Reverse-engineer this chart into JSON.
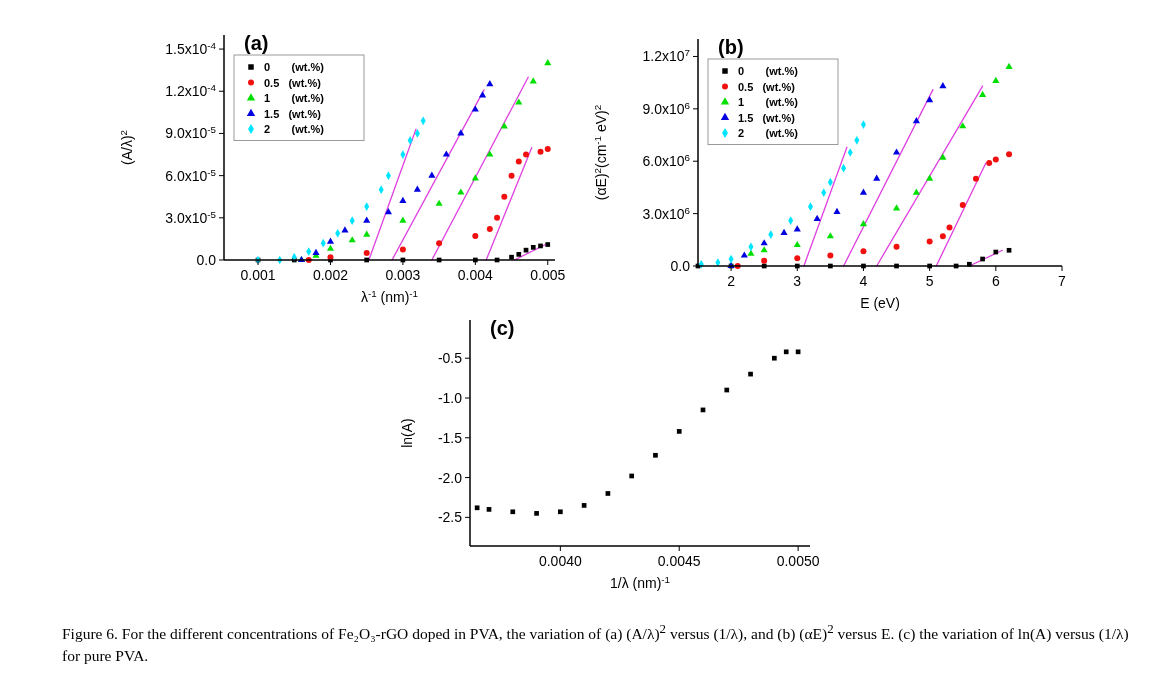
{
  "chart_data": [
    {
      "type": "scatter",
      "title": "(a)",
      "xlabel": "λ$^{-1}$ (nm)$^{-1}$",
      "ylabel": "(A/λ)$^{2}$",
      "xlim": [
        0.00053,
        0.0051
      ],
      "ylim": [
        0,
        0.00016
      ],
      "xticks": [
        0.001,
        0.002,
        0.003,
        0.004,
        0.005
      ],
      "yticks": [
        {
          "value": 0,
          "label": "0.0"
        },
        {
          "value": 3e-05,
          "label": "3.0x10$^{-5}$"
        },
        {
          "value": 6e-05,
          "label": "6.0x10$^{-5}$"
        },
        {
          "value": 9e-05,
          "label": "9.0x10$^{-5}$"
        },
        {
          "value": 0.00012,
          "label": "1.2x10$^{-4}$"
        },
        {
          "value": 0.00015,
          "label": "1.5x10$^{-4}$"
        }
      ],
      "legend": "top left",
      "series": [
        {
          "name": "0 (wt.%)",
          "color": "#000000",
          "marker": "square",
          "x": [
            0.001,
            0.0015,
            0.002,
            0.0025,
            0.003,
            0.0035,
            0.004,
            0.0043,
            0.0045,
            0.0046,
            0.0047,
            0.0048,
            0.0049,
            0.005
          ],
          "values": [
            0,
            0,
            0,
            0,
            0,
            0,
            0,
            0,
            2e-06,
            4e-06,
            7e-06,
            9e-06,
            1e-05,
            1.1e-05
          ]
        },
        {
          "name": "0.5 (wt.%)",
          "color": "#f01010",
          "marker": "circle",
          "x": [
            0.0017,
            0.002,
            0.0025,
            0.003,
            0.0035,
            0.004,
            0.0042,
            0.0043,
            0.0044,
            0.0045,
            0.0046,
            0.0047,
            0.0049,
            0.005
          ],
          "values": [
            0,
            2e-06,
            5e-06,
            7.5e-06,
            1.2e-05,
            1.7e-05,
            2.2e-05,
            3e-05,
            4.5e-05,
            6e-05,
            7e-05,
            7.5e-05,
            7.7e-05,
            7.9e-05
          ]
        },
        {
          "name": "1 (wt.%)",
          "color": "#00e000",
          "marker": "triangle",
          "x": [
            0.0016,
            0.0018,
            0.002,
            0.0023,
            0.0025,
            0.003,
            0.0035,
            0.0038,
            0.004,
            0.0042,
            0.0044,
            0.0046,
            0.0048,
            0.005
          ],
          "values": [
            0,
            3e-06,
            8e-06,
            1.4e-05,
            1.8e-05,
            2.8e-05,
            4e-05,
            4.8e-05,
            5.8e-05,
            7.5e-05,
            9.5e-05,
            0.000112,
            0.000127,
            0.00014
          ]
        },
        {
          "name": "1.5 (wt.%)",
          "color": "#0000e0",
          "marker": "triangle",
          "x": [
            0.0016,
            0.0018,
            0.002,
            0.0022,
            0.0025,
            0.0028,
            0.003,
            0.0032,
            0.0034,
            0.0036,
            0.0038,
            0.004,
            0.0041,
            0.0042
          ],
          "values": [
            0,
            5e-06,
            1.3e-05,
            2.1e-05,
            2.8e-05,
            3.4e-05,
            4.2e-05,
            5e-05,
            6e-05,
            7.5e-05,
            9e-05,
            0.000107,
            0.000117,
            0.000125
          ]
        },
        {
          "name": "2 (wt.%)",
          "color": "#00e5ff",
          "marker": "diamond",
          "x": [
            0.001,
            0.0013,
            0.0015,
            0.0017,
            0.0019,
            0.0021,
            0.0023,
            0.0025,
            0.0027,
            0.0028,
            0.003,
            0.0031,
            0.0032,
            0.00328
          ],
          "values": [
            0,
            0,
            2e-06,
            6e-06,
            1.2e-05,
            1.9e-05,
            2.8e-05,
            3.8e-05,
            5e-05,
            6e-05,
            7.5e-05,
            8.5e-05,
            9e-05,
            9.9e-05
          ]
        },
        {
          "type": "line",
          "color": "#e040e0",
          "x": [
            0.00253,
            0.00318
          ],
          "values": [
            0,
            9.3e-05
          ]
        },
        {
          "type": "line",
          "color": "#e040e0",
          "x": [
            0.00285,
            0.00412
          ],
          "values": [
            0,
            0.000121
          ]
        },
        {
          "type": "line",
          "color": "#e040e0",
          "x": [
            0.0034,
            0.00473
          ],
          "values": [
            0,
            0.00013
          ]
        },
        {
          "type": "line",
          "color": "#e040e0",
          "x": [
            0.00415,
            0.00478
          ],
          "values": [
            0,
            8e-05
          ]
        },
        {
          "type": "line",
          "color": "#e040e0",
          "x": [
            0.00454,
            0.00497
          ],
          "values": [
            0,
            1.1e-05
          ]
        }
      ]
    },
    {
      "type": "scatter",
      "title": "(b)",
      "xlabel": "E (eV)",
      "ylabel": "(αE)$^{2}$(cm$^{-1}$ eV)$^{2}$",
      "xlim": [
        1.5,
        7
      ],
      "ylim": [
        0,
        13000000
      ],
      "xticks": [
        2,
        3,
        4,
        5,
        6,
        7
      ],
      "yticks": [
        {
          "value": 0,
          "label": "0.0"
        },
        {
          "value": 3000000,
          "label": "3.0x10$^{6}$"
        },
        {
          "value": 6000000,
          "label": "6.0x10$^{6}$"
        },
        {
          "value": 9000000,
          "label": "9.0x10$^{6}$"
        },
        {
          "value": 12000000,
          "label": "1.2x10$^{7}$"
        }
      ],
      "legend": "top left",
      "series": [
        {
          "name": "0 (wt.%)",
          "color": "#000000",
          "marker": "square",
          "x": [
            1.5,
            2,
            2.5,
            3,
            3.5,
            4,
            4.5,
            5,
            5.4,
            5.6,
            5.8,
            6,
            6.2
          ],
          "values": [
            0,
            0,
            0,
            0,
            0,
            0,
            0,
            0,
            0,
            100000,
            400000,
            800000,
            900000
          ]
        },
        {
          "name": "0.5 (wt.%)",
          "color": "#f01010",
          "marker": "circle",
          "x": [
            2.1,
            2.5,
            3,
            3.5,
            4,
            4.5,
            5,
            5.2,
            5.3,
            5.5,
            5.7,
            5.9,
            6,
            6.2
          ],
          "values": [
            0,
            300000,
            450000,
            600000,
            850000,
            1100000,
            1400000,
            1700000,
            2200000,
            3500000,
            5000000,
            5900000,
            6100000,
            6400000
          ]
        },
        {
          "name": "1 (wt.%)",
          "color": "#00e000",
          "marker": "triangle",
          "x": [
            2,
            2.3,
            2.5,
            3,
            3.5,
            4,
            4.5,
            4.8,
            5,
            5.2,
            5.5,
            5.8,
            6,
            6.2
          ],
          "values": [
            0,
            700000,
            900000,
            1200000,
            1700000,
            2400000,
            3300000,
            4200000,
            5000000,
            6200000,
            8000000,
            9800000,
            10600000,
            11400000
          ]
        },
        {
          "name": "1.5 (wt.%)",
          "color": "#0000e0",
          "marker": "triangle",
          "x": [
            2,
            2.2,
            2.5,
            2.8,
            3,
            3.3,
            3.6,
            4,
            4.2,
            4.5,
            4.8,
            5,
            5.2
          ],
          "values": [
            0,
            600000,
            1300000,
            1900000,
            2100000,
            2700000,
            3100000,
            4200000,
            5000000,
            6500000,
            8300000,
            9500000,
            10300000
          ]
        },
        {
          "name": "2 (wt.%)",
          "color": "#00e5ff",
          "marker": "diamond",
          "x": [
            1.55,
            1.8,
            2,
            2.3,
            2.6,
            2.9,
            3.2,
            3.4,
            3.5,
            3.7,
            3.8,
            3.9,
            4
          ],
          "values": [
            100000,
            200000,
            400000,
            1100000,
            1800000,
            2600000,
            3400000,
            4200000,
            4800000,
            5600000,
            6500000,
            7200000,
            8100000
          ]
        },
        {
          "type": "line",
          "color": "#e040e0",
          "x": [
            3.1,
            3.75
          ],
          "values": [
            0,
            6800000
          ]
        },
        {
          "type": "line",
          "color": "#e040e0",
          "x": [
            3.7,
            5.05
          ],
          "values": [
            0,
            10100000
          ]
        },
        {
          "type": "line",
          "color": "#e040e0",
          "x": [
            4.2,
            5.8
          ],
          "values": [
            0,
            10300000
          ]
        },
        {
          "type": "line",
          "color": "#e040e0",
          "x": [
            5.1,
            5.85
          ],
          "values": [
            0,
            5900000
          ]
        },
        {
          "type": "line",
          "color": "#e040e0",
          "x": [
            5.6,
            6.1
          ],
          "values": [
            0,
            900000
          ]
        }
      ]
    },
    {
      "type": "scatter",
      "title": "(c)",
      "xlabel": "1/λ (nm)$^{-1}$",
      "ylabel": "ln(A)",
      "xlim": [
        0.00362,
        0.00505
      ],
      "ylim": [
        -2.86,
        -0.02
      ],
      "xticks": [
        {
          "value": 0.004,
          "label": "0.0040"
        },
        {
          "value": 0.0045,
          "label": "0.0045"
        },
        {
          "value": 0.005,
          "label": "0.0050"
        }
      ],
      "yticks": [
        -0.5,
        {
          "value": -1,
          "label": "-1.0"
        },
        -1.5,
        {
          "value": -2,
          "label": "-2.0"
        },
        -2.5
      ],
      "annotations": [
        "Figure 6. For the different concentrations of Fe₂O₃-rGO doped in PVA, the variation of (a) (A/λ)$^{2}$ versus (1/λ), and (b) (αE)$^{2}$ versus E. (c) the variation of ln(A) versus (1/λ) for pure PVA."
      ],
      "series": [
        {
          "color": "#000000",
          "marker": "square",
          "x": [
            0.00365,
            0.0037,
            0.0038,
            0.0039,
            0.004,
            0.0041,
            0.0042,
            0.0043,
            0.0044,
            0.0045,
            0.0046,
            0.0047,
            0.0048,
            0.0049,
            0.00495,
            0.005
          ],
          "values": [
            -2.38,
            -2.4,
            -2.43,
            -2.45,
            -2.43,
            -2.35,
            -2.2,
            -1.98,
            -1.72,
            -1.42,
            -1.15,
            -0.9,
            -0.7,
            -0.5,
            -0.42,
            -0.42
          ]
        }
      ]
    }
  ]
}
